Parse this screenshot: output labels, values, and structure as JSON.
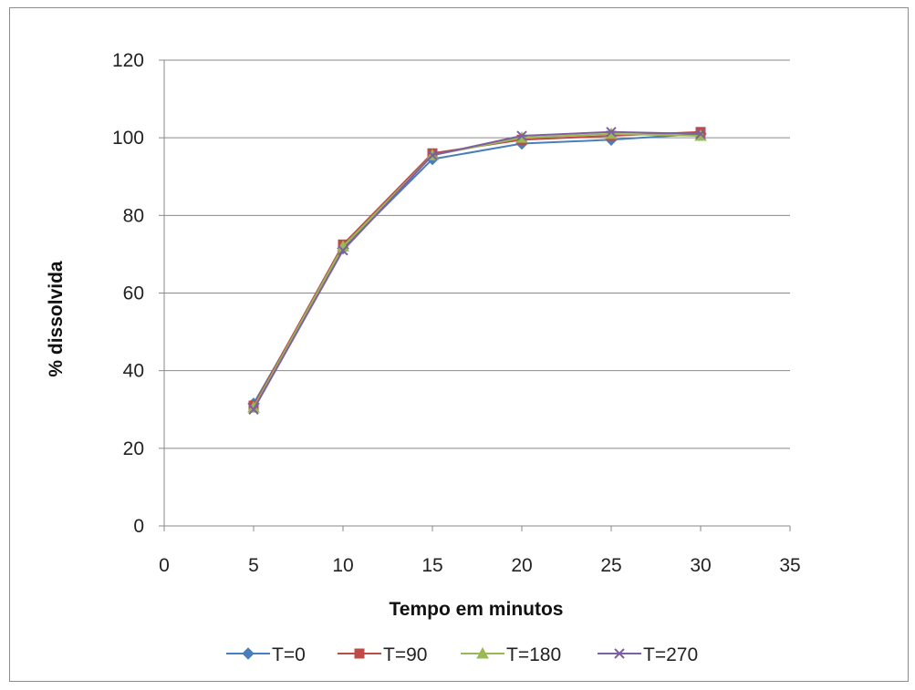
{
  "chart_data": {
    "type": "line",
    "title": "",
    "xlabel": "Tempo em minutos",
    "ylabel": "% dissolvida",
    "xlim": [
      0,
      35
    ],
    "ylim": [
      0,
      120
    ],
    "x_ticks": [
      0,
      5,
      10,
      15,
      20,
      25,
      30,
      35
    ],
    "y_ticks": [
      0,
      20,
      40,
      60,
      80,
      100,
      120
    ],
    "grid": "horizontal",
    "legend_position": "bottom",
    "x": [
      5,
      10,
      15,
      20,
      25,
      30
    ],
    "series": [
      {
        "name": "T=0",
        "color": "#4a7ebb",
        "marker": "diamond",
        "values": [
          31.5,
          71.5,
          94.5,
          98.5,
          99.5,
          101.0
        ]
      },
      {
        "name": "T=90",
        "color": "#be4b48",
        "marker": "square",
        "values": [
          31.0,
          72.5,
          96.0,
          99.5,
          100.5,
          101.5
        ]
      },
      {
        "name": "T=180",
        "color": "#98b954",
        "marker": "triangle",
        "values": [
          30.5,
          72.0,
          95.5,
          100.0,
          101.0,
          100.5
        ]
      },
      {
        "name": "T=270",
        "color": "#7d60a0",
        "marker": "x",
        "values": [
          30.0,
          71.0,
          95.5,
          100.5,
          101.5,
          101.0
        ]
      }
    ]
  }
}
